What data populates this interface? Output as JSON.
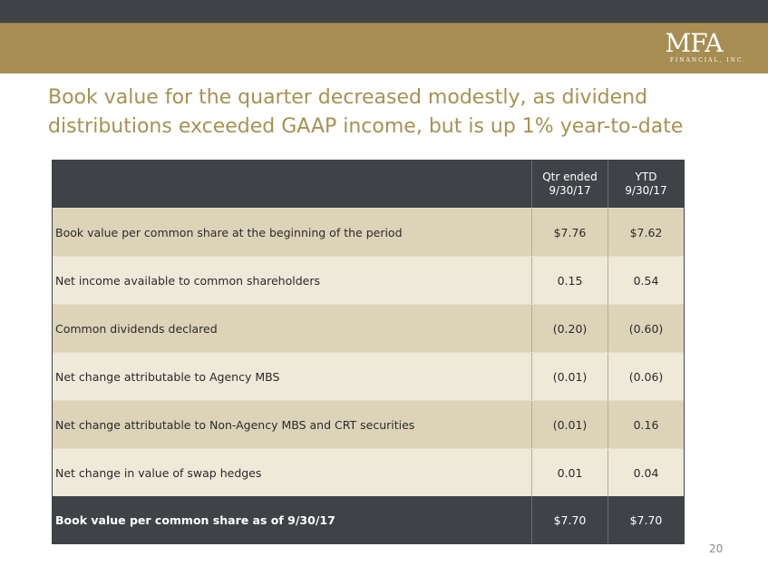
{
  "logo": {
    "main": "MFA",
    "sub": "FINANCIAL, INC."
  },
  "title": "Book value for the quarter decreased modestly, as dividend distributions exceeded GAAP income, but is up 1% year-to-date",
  "table": {
    "headers": [
      {
        "line1": "Qtr ended",
        "line2": "9/30/17"
      },
      {
        "line1": "YTD",
        "line2": "9/30/17"
      }
    ],
    "rows": [
      {
        "label": "Book value per common share at the beginning of the period",
        "qtr": "$7.76",
        "ytd": "$7.62"
      },
      {
        "label": "Net income available to common shareholders",
        "qtr": "0.15",
        "ytd": "0.54"
      },
      {
        "label": "Common dividends declared",
        "qtr": "(0.20)",
        "ytd": "(0.60)"
      },
      {
        "label": "Net change attributable to Agency MBS",
        "qtr": "(0.01)",
        "ytd": "(0.06)"
      },
      {
        "label": "Net change attributable to Non-Agency MBS and CRT securities",
        "qtr": "(0.01)",
        "ytd": "0.16"
      },
      {
        "label": "Net change in value of swap hedges",
        "qtr": "0.01",
        "ytd": "0.04"
      }
    ],
    "footer": {
      "label": "Book value per common share as of 9/30/17",
      "qtr": "$7.70",
      "ytd": "$7.70"
    }
  },
  "page_number": "20",
  "colors": {
    "band_dark": "#3f4347",
    "band_gold": "#a68d52",
    "title": "#a89152"
  }
}
